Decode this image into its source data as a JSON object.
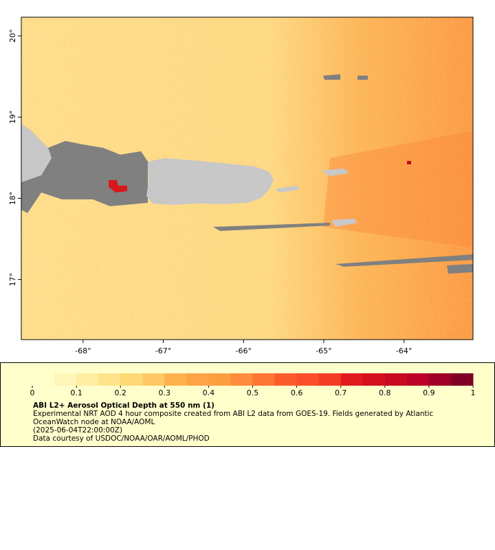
{
  "map": {
    "xlim": [
      -68.77,
      -63.14
    ],
    "ylim": [
      16.26,
      20.23
    ],
    "xticks": [
      {
        "value": -68,
        "label": "-68°"
      },
      {
        "value": -67,
        "label": "-67°"
      },
      {
        "value": -66,
        "label": "-66°"
      },
      {
        "value": -65,
        "label": "-65°"
      },
      {
        "value": -64,
        "label": "-64°"
      }
    ],
    "yticks": [
      {
        "value": 20,
        "label": "20°"
      },
      {
        "value": 19,
        "label": "19°"
      },
      {
        "value": 18,
        "label": "18°"
      },
      {
        "value": 17,
        "label": "17°"
      }
    ]
  },
  "colorbar": {
    "lim": [
      0,
      1
    ],
    "ticks": [
      0,
      0.1,
      0.2,
      0.3,
      0.4,
      0.5,
      0.6,
      0.7,
      0.8,
      0.9,
      1
    ],
    "colors": [
      "#ffffcc",
      "#fff5b8",
      "#ffeda0",
      "#fee38b",
      "#fed976",
      "#fec965",
      "#feb24c",
      "#fea446",
      "#fd9f40",
      "#fd8d3c",
      "#fd7433",
      "#fc5b2c",
      "#fc4e2a",
      "#f43d25",
      "#e31a1c",
      "#d50f1e",
      "#c90822",
      "#bd0026",
      "#a10026",
      "#800026"
    ]
  },
  "caption": {
    "title": "ABI L2+ Aerosol Optical Depth at 550 nm (1)",
    "lines": [
      "Experimental NRT AOD 4 hour composite created from ABI L2 data from GOES-19. Fields generated by Atlantic",
      "OceanWatch node at NOAA/AOML",
      "(2025-06-04T22:00:00Z)",
      "Data courtesy of USDOC/NOAA/OAR/AOML/PHOD"
    ]
  }
}
